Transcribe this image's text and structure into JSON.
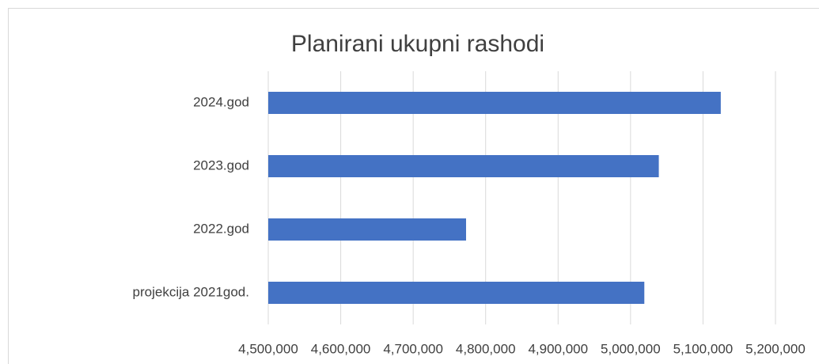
{
  "chart_data": {
    "type": "bar",
    "orientation": "horizontal",
    "title": "Planirani ukupni rashodi",
    "categories": [
      "projekcija 2021god.",
      "2022.god",
      "2023.god",
      "2024.god"
    ],
    "values": [
      5019000,
      4773000,
      5039000,
      5124500
    ],
    "color": "#4472c4",
    "xlim": [
      4500000,
      5200000
    ],
    "xticks": [
      {
        "value": 4500000,
        "label": "4,500,000"
      },
      {
        "value": 4600000,
        "label": "4,600,000"
      },
      {
        "value": 4700000,
        "label": "4,700,000"
      },
      {
        "value": 4800000,
        "label": "4,800,000"
      },
      {
        "value": 4900000,
        "label": "4,900,000"
      },
      {
        "value": 5000000,
        "label": "5,000,000"
      },
      {
        "value": 5100000,
        "label": "5,100,000"
      },
      {
        "value": 5200000,
        "label": "5,200,000"
      }
    ],
    "grid": true
  }
}
